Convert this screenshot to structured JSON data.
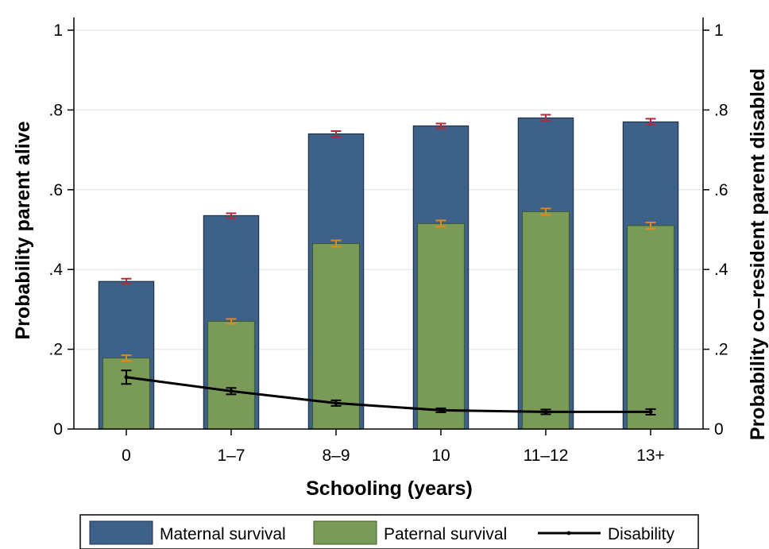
{
  "chart_data": {
    "type": "bar",
    "categories": [
      "0",
      "1–7",
      "8–9",
      "10",
      "11–12",
      "13+"
    ],
    "xlabel": "Schooling (years)",
    "ylabel": "Probability parent alive",
    "y2label": "Probability co–resident parent disabled",
    "ylim": [
      0,
      1
    ],
    "y2lim": [
      0,
      1
    ],
    "yticks": [
      0,
      0.2,
      0.4,
      0.6,
      0.8,
      1
    ],
    "ytick_labels": [
      "0",
      ".2",
      ".4",
      ".6",
      ".8",
      "1"
    ],
    "grid": true,
    "legend_position": "bottom",
    "series": [
      {
        "name": "Maternal survival",
        "kind": "bar",
        "color": "#3e6189",
        "values": [
          0.37,
          0.535,
          0.74,
          0.76,
          0.78,
          0.77
        ],
        "ci_low": [
          0.364,
          0.529,
          0.733,
          0.754,
          0.773,
          0.763
        ],
        "ci_high": [
          0.377,
          0.541,
          0.747,
          0.766,
          0.788,
          0.778
        ],
        "error_color": "#b02a3a"
      },
      {
        "name": "Paternal survival",
        "kind": "bar",
        "color": "#7a9a58",
        "values": [
          0.178,
          0.27,
          0.465,
          0.515,
          0.545,
          0.51
        ],
        "ci_low": [
          0.171,
          0.264,
          0.457,
          0.507,
          0.537,
          0.502
        ],
        "ci_high": [
          0.185,
          0.276,
          0.473,
          0.523,
          0.553,
          0.518
        ],
        "error_color": "#e08a1e"
      },
      {
        "name": "Disability",
        "kind": "line",
        "axis": "right",
        "color": "#000000",
        "values": [
          0.13,
          0.095,
          0.065,
          0.047,
          0.043,
          0.043
        ],
        "ci_low": [
          0.113,
          0.087,
          0.058,
          0.042,
          0.037,
          0.036
        ],
        "ci_high": [
          0.147,
          0.103,
          0.072,
          0.052,
          0.049,
          0.05
        ]
      }
    ]
  }
}
